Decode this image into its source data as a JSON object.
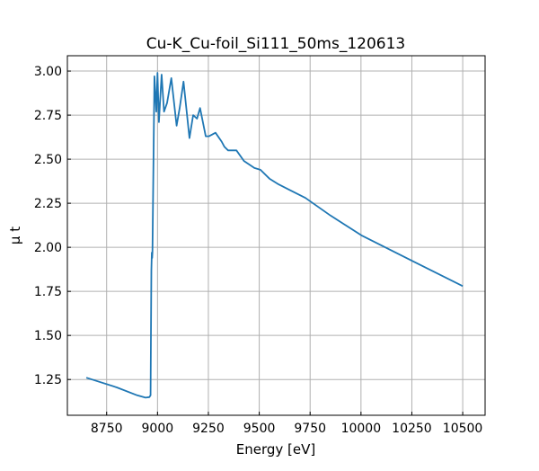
{
  "chart_data": {
    "type": "line",
    "title": "Cu-K_Cu-foil_Si111_50ms_120613",
    "xlabel": "Energy [eV]",
    "ylabel": "μ t",
    "xlim": [
      8557,
      10610
    ],
    "ylim": [
      1.047,
      3.087
    ],
    "xticks": [
      8750,
      9000,
      9250,
      9500,
      9750,
      10000,
      10250,
      10500
    ],
    "yticks": [
      1.25,
      1.5,
      1.75,
      2.0,
      2.25,
      2.5,
      2.75,
      3.0
    ],
    "xtick_labels": [
      "8750",
      "9000",
      "9250",
      "9500",
      "9750",
      "10000",
      "10250",
      "10500"
    ],
    "ytick_labels": [
      "1.25",
      "1.50",
      "1.75",
      "2.00",
      "2.25",
      "2.50",
      "2.75",
      "3.00"
    ],
    "grid": true,
    "series": [
      {
        "name": "Cu-K_Cu-foil_Si111_50ms_120613",
        "color": "#1f77b4",
        "x": [
          8650,
          8800,
          8900,
          8941,
          8960,
          8966,
          8970,
          8972,
          8974,
          8975,
          8985,
          8994,
          9000,
          9007,
          9020,
          9032,
          9047,
          9068,
          9094,
          9109,
          9128,
          9157,
          9175,
          9194,
          9209,
          9237,
          9253,
          9285,
          9315,
          9329,
          9347,
          9388,
          9425,
          9476,
          9506,
          9550,
          9595,
          9650,
          9727,
          9850,
          10005,
          10257,
          10500
        ],
        "y": [
          1.26,
          1.205,
          1.16,
          1.147,
          1.15,
          1.16,
          1.87,
          1.97,
          1.94,
          1.97,
          2.97,
          2.77,
          2.99,
          2.71,
          2.98,
          2.77,
          2.82,
          2.96,
          2.69,
          2.79,
          2.94,
          2.62,
          2.75,
          2.73,
          2.79,
          2.63,
          2.63,
          2.65,
          2.6,
          2.57,
          2.55,
          2.55,
          2.49,
          2.45,
          2.44,
          2.39,
          2.357,
          2.325,
          2.28,
          2.18,
          2.066,
          1.92,
          1.78
        ]
      }
    ]
  }
}
